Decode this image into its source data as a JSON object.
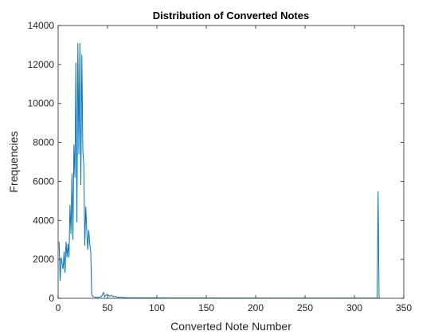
{
  "chart_data": {
    "type": "line",
    "title": "Distribution of Converted Notes",
    "xlabel": "Converted Note Number",
    "ylabel": "Frequencies",
    "xlim": [
      0,
      350
    ],
    "ylim": [
      0,
      14000
    ],
    "xticks": [
      0,
      50,
      100,
      150,
      200,
      250,
      300,
      350
    ],
    "yticks": [
      0,
      2000,
      4000,
      6000,
      8000,
      10000,
      12000,
      14000
    ],
    "grid": false,
    "legend": "none",
    "line_color": "#0072BD",
    "series": [
      {
        "x": [
          1,
          2,
          3,
          4,
          5,
          6,
          7,
          8,
          9,
          10,
          11,
          12,
          13,
          14,
          15,
          16,
          17,
          18,
          19,
          20,
          21,
          22,
          23,
          24,
          25,
          26,
          27,
          28,
          29,
          30,
          31,
          32,
          33,
          34,
          35,
          36,
          37,
          38,
          39,
          40,
          42,
          44,
          46,
          47,
          48,
          50,
          52,
          54,
          56,
          58,
          60,
          65,
          70,
          80,
          90,
          100,
          120,
          150,
          200,
          250,
          300,
          320,
          323,
          324,
          325,
          326
        ],
        "y": [
          2900,
          900,
          2100,
          1800,
          1500,
          2400,
          1300,
          2900,
          2100,
          2800,
          2100,
          4800,
          3300,
          6400,
          3000,
          7900,
          6200,
          12100,
          3900,
          13100,
          7400,
          13100,
          5800,
          12500,
          7600,
          6800,
          2700,
          4700,
          3500,
          2500,
          3500,
          2800,
          2400,
          200,
          100,
          80,
          60,
          50,
          40,
          40,
          60,
          100,
          300,
          80,
          150,
          200,
          100,
          150,
          80,
          100,
          50,
          40,
          30,
          20,
          20,
          20,
          15,
          15,
          10,
          10,
          10,
          10,
          10,
          5500,
          20,
          0
        ]
      }
    ]
  }
}
